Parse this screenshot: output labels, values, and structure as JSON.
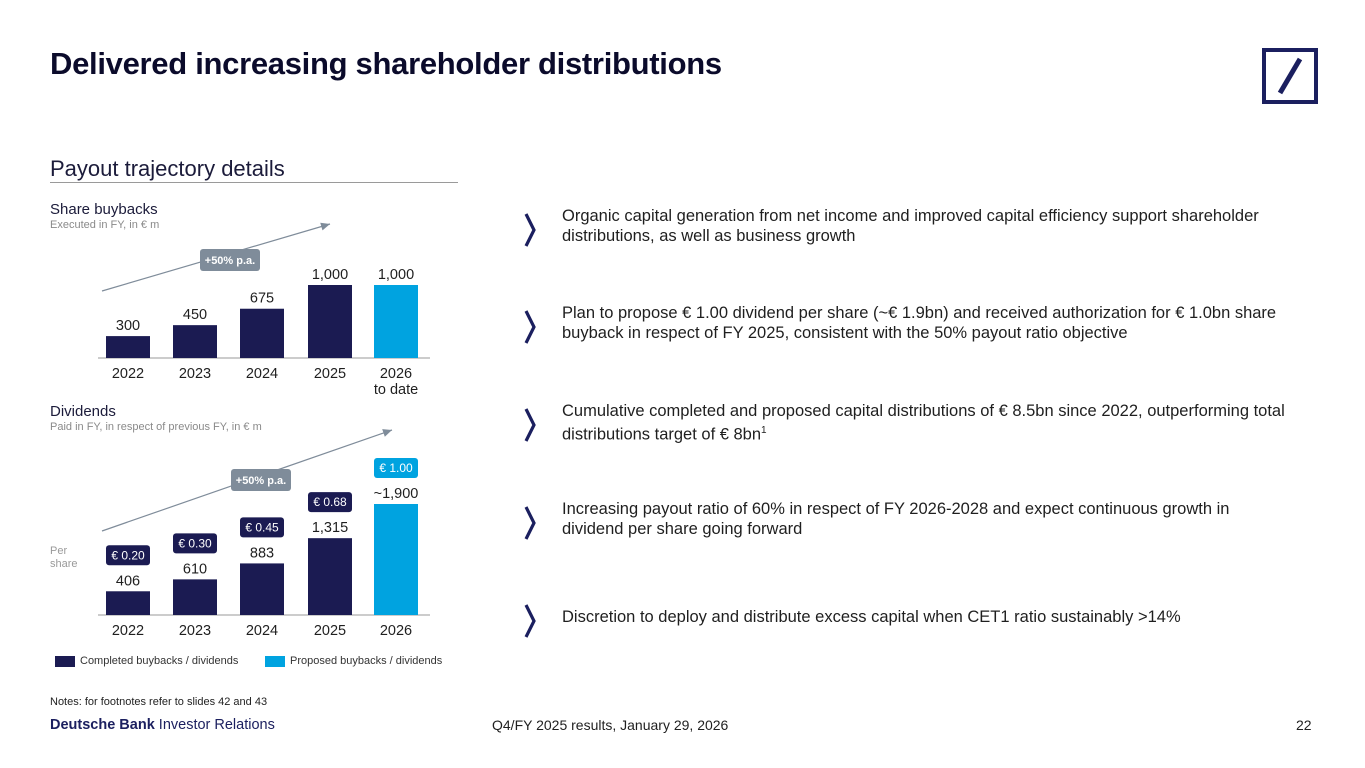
{
  "title": "Delivered increasing shareholder distributions",
  "section_title": "Payout trajectory details",
  "colors": {
    "completed": "#1b1b52",
    "proposed": "#00a3e0",
    "growth_badge": "#7f8c9a",
    "navy": "#1b1f5f"
  },
  "chart_data": [
    {
      "type": "bar",
      "title": "Share buybacks",
      "subtitle": "Executed in FY, in € m",
      "categories": [
        "2022",
        "2023",
        "2024",
        "2025",
        "2026"
      ],
      "category_sublabels": [
        "",
        "",
        "",
        "",
        "to date"
      ],
      "values": [
        300,
        450,
        675,
        1000,
        1000
      ],
      "value_labels": [
        "300",
        "450",
        "675",
        "1,000",
        "1,000"
      ],
      "status": [
        "completed",
        "completed",
        "completed",
        "completed",
        "proposed"
      ],
      "growth_label": "+50% p.a.",
      "ylim": [
        0,
        1000
      ]
    },
    {
      "type": "bar",
      "title": "Dividends",
      "subtitle": "Paid in FY, in respect of previous FY, in € m",
      "categories": [
        "2022",
        "2023",
        "2024",
        "2025",
        "2026"
      ],
      "values": [
        406,
        610,
        883,
        1315,
        1900
      ],
      "value_labels": [
        "406",
        "610",
        "883",
        "1,315",
        "~1,900"
      ],
      "per_share": [
        "€ 0.20",
        "€ 0.30",
        "€ 0.45",
        "€ 0.68",
        "€ 1.00"
      ],
      "status": [
        "completed",
        "completed",
        "completed",
        "completed",
        "proposed"
      ],
      "per_share_label": "Per share",
      "growth_label": "+50% p.a.",
      "ylim": [
        0,
        1900
      ]
    }
  ],
  "legend": {
    "completed": "Completed buybacks / dividends",
    "proposed": "Proposed buybacks / dividends"
  },
  "bullets": [
    {
      "text": "Organic capital generation from net income and improved capital efficiency support shareholder distributions, as well as business growth"
    },
    {
      "text": "Plan to propose € 1.00 dividend per share (~€ 1.9bn) and received authorization for € 1.0bn share buyback in respect of FY 2025, consistent with the 50% payout ratio objective"
    },
    {
      "text": "Cumulative completed and proposed capital distributions of € 8.5bn since 2022, outperforming total distributions target of € 8bn",
      "sup": "1"
    },
    {
      "text": "Increasing payout ratio of 60% in respect of FY 2026-2028 and expect continuous growth in dividend per share going forward"
    },
    {
      "text": "Discretion to deploy and distribute excess capital when CET1 ratio sustainably >14%"
    }
  ],
  "notes": "Notes: for footnotes refer to slides 42 and 43",
  "footer": {
    "brand_bold": "Deutsche Bank",
    "brand_rest": " Investor Relations",
    "center": "Q4/FY 2025 results, January 29, 2026",
    "page": "22"
  }
}
